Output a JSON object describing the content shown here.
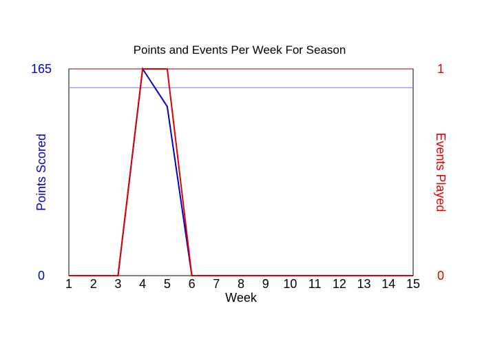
{
  "chart_data": {
    "type": "line",
    "title": "Points and Events Per Week For Season",
    "xlabel": "Week",
    "ylabel_left": "Points Scored",
    "ylabel_right": "Events Played",
    "x": [
      1,
      2,
      3,
      4,
      5,
      6,
      7,
      8,
      9,
      10,
      11,
      12,
      13,
      14,
      15
    ],
    "xlim": [
      1,
      15
    ],
    "ylim_left": [
      0,
      165
    ],
    "ylim_right": [
      0,
      1
    ],
    "y_ticks_left": [
      "0",
      "165"
    ],
    "y_ticks_right": [
      "0",
      "1"
    ],
    "reference_line_left": 150,
    "series": [
      {
        "name": "Points Scored",
        "axis": "left",
        "color": "#0000cc",
        "values": [
          0,
          0,
          0,
          165,
          135,
          0,
          0,
          0,
          0,
          0,
          0,
          0,
          0,
          0,
          0
        ]
      },
      {
        "name": "Events Played",
        "axis": "right",
        "color": "#dd0000",
        "values": [
          0,
          0,
          0,
          1,
          1,
          0,
          0,
          0,
          0,
          0,
          0,
          0,
          0,
          0,
          0
        ]
      }
    ],
    "colors": {
      "left_axis": "#0000cc",
      "right_axis": "#dd0000",
      "reference_line": "#7777ee",
      "frame_top": "#880000"
    },
    "grid": false
  }
}
